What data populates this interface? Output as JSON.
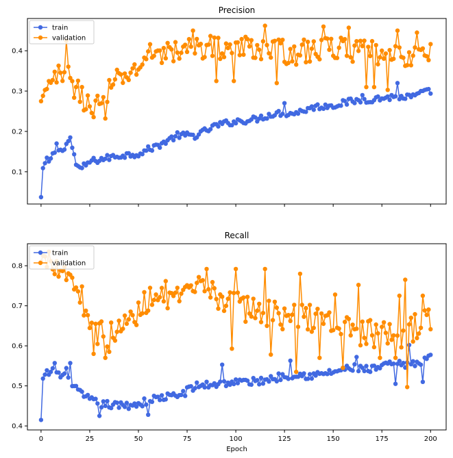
{
  "colors": {
    "train": "#4169e1",
    "validation": "#ff8c00"
  },
  "chart_data": [
    {
      "type": "line",
      "title": "Precision",
      "xlabel": "",
      "ylabel": "",
      "xlim": [
        -7,
        208
      ],
      "ylim": [
        0.02,
        0.48
      ],
      "xticks": [
        0,
        25,
        50,
        75,
        100,
        125,
        150,
        175,
        200
      ],
      "xtick_labels_visible": false,
      "yticks": [
        0.1,
        0.2,
        0.3,
        0.4
      ],
      "ytick_labels": [
        "0.1",
        "0.2",
        "0.3",
        "0.4"
      ],
      "legend": {
        "position": "top-left",
        "entries": [
          "train",
          "validation"
        ]
      },
      "keypoints": {
        "train": [
          [
            0,
            0.037
          ],
          [
            1,
            0.107
          ],
          [
            3,
            0.12
          ],
          [
            5,
            0.13
          ],
          [
            8,
            0.16
          ],
          [
            10,
            0.15
          ],
          [
            14,
            0.175
          ],
          [
            16,
            0.16
          ],
          [
            18,
            0.12
          ],
          [
            20,
            0.105
          ],
          [
            25,
            0.125
          ],
          [
            35,
            0.135
          ],
          [
            40,
            0.14
          ],
          [
            50,
            0.145
          ],
          [
            60,
            0.165
          ],
          [
            70,
            0.19
          ],
          [
            80,
            0.19
          ],
          [
            90,
            0.215
          ],
          [
            100,
            0.225
          ],
          [
            110,
            0.23
          ],
          [
            120,
            0.245
          ],
          [
            130,
            0.245
          ],
          [
            140,
            0.26
          ],
          [
            150,
            0.265
          ],
          [
            160,
            0.275
          ],
          [
            170,
            0.28
          ],
          [
            180,
            0.285
          ],
          [
            190,
            0.285
          ],
          [
            200,
            0.3
          ]
        ],
        "validation": [
          [
            0,
            0.275
          ],
          [
            3,
            0.29
          ],
          [
            5,
            0.32
          ],
          [
            8,
            0.34
          ],
          [
            11,
            0.32
          ],
          [
            13,
            0.34
          ],
          [
            15,
            0.35
          ],
          [
            17,
            0.31
          ],
          [
            20,
            0.29
          ],
          [
            24,
            0.27
          ],
          [
            28,
            0.26
          ],
          [
            32,
            0.28
          ],
          [
            35,
            0.3
          ],
          [
            40,
            0.33
          ],
          [
            45,
            0.34
          ],
          [
            50,
            0.36
          ],
          [
            55,
            0.39
          ],
          [
            60,
            0.4
          ],
          [
            70,
            0.395
          ],
          [
            80,
            0.41
          ],
          [
            90,
            0.41
          ],
          [
            100,
            0.405
          ],
          [
            110,
            0.41
          ],
          [
            120,
            0.4
          ],
          [
            130,
            0.395
          ],
          [
            140,
            0.4
          ],
          [
            150,
            0.41
          ],
          [
            160,
            0.4
          ],
          [
            170,
            0.395
          ],
          [
            180,
            0.38
          ],
          [
            190,
            0.39
          ],
          [
            200,
            0.39
          ]
        ]
      },
      "spikes": {
        "train": [
          [
            3,
            0.135
          ],
          [
            8,
            0.17
          ],
          [
            15,
            0.185
          ],
          [
            125,
            0.27
          ],
          [
            165,
            0.29
          ],
          [
            183,
            0.32
          ],
          [
            195,
            0.3
          ]
        ],
        "validation": [
          [
            13,
            0.425
          ],
          [
            23,
            0.255
          ],
          [
            33,
            0.232
          ],
          [
            72,
            0.395
          ],
          [
            78,
            0.45
          ],
          [
            90,
            0.325
          ],
          [
            99,
            0.325
          ],
          [
            115,
            0.462
          ],
          [
            121,
            0.32
          ],
          [
            145,
            0.46
          ],
          [
            158,
            0.457
          ],
          [
            167,
            0.31
          ],
          [
            171,
            0.31
          ],
          [
            178,
            0.303
          ],
          [
            183,
            0.45
          ],
          [
            193,
            0.445
          ]
        ]
      },
      "noise": {
        "train": 0.008,
        "validation": 0.03
      }
    },
    {
      "type": "line",
      "title": "Recall",
      "xlabel": "Epoch",
      "ylabel": "",
      "xlim": [
        -7,
        208
      ],
      "ylim": [
        0.39,
        0.855
      ],
      "xticks": [
        0,
        25,
        50,
        75,
        100,
        125,
        150,
        175,
        200
      ],
      "xtick_labels": [
        "0",
        "25",
        "50",
        "75",
        "100",
        "125",
        "150",
        "175",
        "200"
      ],
      "yticks": [
        0.4,
        0.5,
        0.6,
        0.7,
        0.8
      ],
      "ytick_labels": [
        "0.4",
        "0.5",
        "0.6",
        "0.7",
        "0.8"
      ],
      "legend": {
        "position": "top-left",
        "entries": [
          "train",
          "validation"
        ]
      },
      "keypoints": {
        "train": [
          [
            0,
            0.415
          ],
          [
            1,
            0.515
          ],
          [
            3,
            0.53
          ],
          [
            5,
            0.535
          ],
          [
            8,
            0.54
          ],
          [
            10,
            0.52
          ],
          [
            13,
            0.535
          ],
          [
            17,
            0.5
          ],
          [
            20,
            0.48
          ],
          [
            25,
            0.465
          ],
          [
            30,
            0.455
          ],
          [
            40,
            0.45
          ],
          [
            50,
            0.455
          ],
          [
            60,
            0.47
          ],
          [
            70,
            0.475
          ],
          [
            80,
            0.5
          ],
          [
            90,
            0.505
          ],
          [
            100,
            0.51
          ],
          [
            110,
            0.51
          ],
          [
            120,
            0.52
          ],
          [
            130,
            0.53
          ],
          [
            140,
            0.525
          ],
          [
            150,
            0.535
          ],
          [
            160,
            0.545
          ],
          [
            170,
            0.54
          ],
          [
            180,
            0.555
          ],
          [
            190,
            0.55
          ],
          [
            200,
            0.575
          ]
        ],
        "validation": [
          [
            0,
            0.81
          ],
          [
            3,
            0.82
          ],
          [
            6,
            0.815
          ],
          [
            10,
            0.8
          ],
          [
            15,
            0.775
          ],
          [
            20,
            0.73
          ],
          [
            25,
            0.67
          ],
          [
            30,
            0.63
          ],
          [
            35,
            0.62
          ],
          [
            40,
            0.64
          ],
          [
            45,
            0.66
          ],
          [
            50,
            0.68
          ],
          [
            55,
            0.72
          ],
          [
            60,
            0.74
          ],
          [
            70,
            0.71
          ],
          [
            80,
            0.74
          ],
          [
            90,
            0.73
          ],
          [
            100,
            0.7
          ],
          [
            110,
            0.69
          ],
          [
            120,
            0.68
          ],
          [
            130,
            0.67
          ],
          [
            140,
            0.67
          ],
          [
            150,
            0.66
          ],
          [
            160,
            0.64
          ],
          [
            170,
            0.63
          ],
          [
            180,
            0.62
          ],
          [
            190,
            0.64
          ],
          [
            200,
            0.665
          ]
        ]
      },
      "spikes": {
        "train": [
          [
            7,
            0.557
          ],
          [
            15,
            0.557
          ],
          [
            30,
            0.425
          ],
          [
            55,
            0.428
          ],
          [
            93,
            0.553
          ],
          [
            128,
            0.563
          ],
          [
            162,
            0.572
          ],
          [
            168,
            0.537
          ],
          [
            182,
            0.505
          ],
          [
            189,
            0.602
          ],
          [
            196,
            0.51
          ]
        ],
        "validation": [
          [
            4,
            0.835
          ],
          [
            27,
            0.58
          ],
          [
            33,
            0.57
          ],
          [
            85,
            0.792
          ],
          [
            98,
            0.593
          ],
          [
            100,
            0.792
          ],
          [
            115,
            0.792
          ],
          [
            118,
            0.578
          ],
          [
            131,
            0.535
          ],
          [
            133,
            0.78
          ],
          [
            143,
            0.57
          ],
          [
            151,
            0.728
          ],
          [
            155,
            0.545
          ],
          [
            163,
            0.752
          ],
          [
            174,
            0.57
          ],
          [
            182,
            0.57
          ],
          [
            184,
            0.725
          ],
          [
            187,
            0.765
          ],
          [
            188,
            0.497
          ],
          [
            196,
            0.725
          ]
        ]
      },
      "noise": {
        "train": 0.01,
        "validation": 0.035
      }
    }
  ]
}
